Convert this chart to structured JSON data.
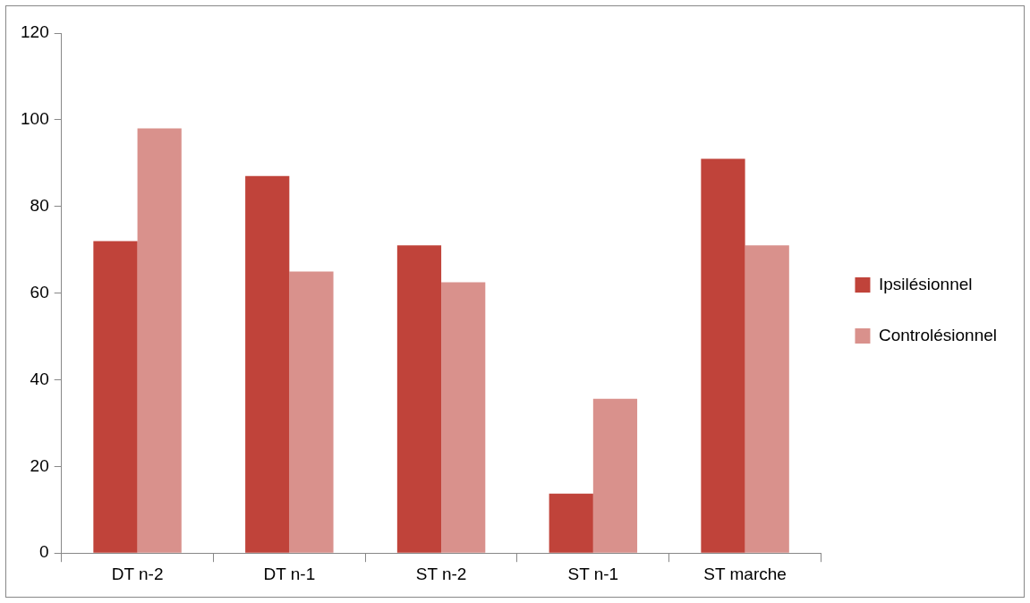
{
  "chart_data": {
    "type": "bar",
    "categories": [
      "DT n-2",
      "DT n-1",
      "ST n-2",
      "ST n-1",
      "ST marche"
    ],
    "series": [
      {
        "name": "Ipsilésionnel",
        "color": "#c0433a",
        "values": [
          72,
          87,
          71,
          13.7,
          91
        ]
      },
      {
        "name": "Controlésionnel",
        "color": "#d9918c",
        "values": [
          98,
          65,
          62.5,
          35.6,
          71
        ]
      }
    ],
    "ylim": [
      0,
      120
    ],
    "yticks": [
      0,
      20,
      40,
      60,
      80,
      100,
      120
    ],
    "grid": false,
    "legend": "right"
  }
}
